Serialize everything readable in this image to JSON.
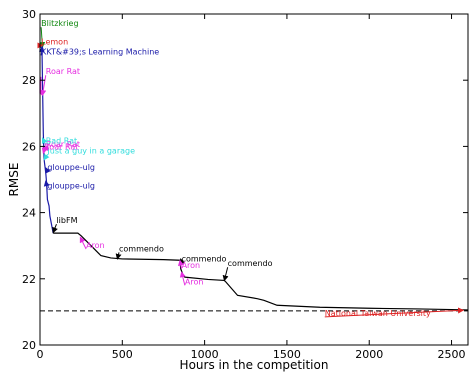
{
  "chart_data": {
    "type": "line",
    "title": "",
    "xlabel": "Hours in the competition",
    "ylabel": "RMSE",
    "xlim": [
      0,
      2600
    ],
    "ylim": [
      20,
      30
    ],
    "grid": false,
    "xticks": [
      0,
      500,
      1000,
      1500,
      2000,
      2500
    ],
    "yticks": [
      20,
      22,
      24,
      26,
      28,
      30
    ],
    "reference_line": {
      "y": 21.03,
      "style": "dashed",
      "color": "#000000"
    },
    "series": [
      {
        "color": "#1a1aa8",
        "points": [
          [
            0,
            29.05
          ],
          [
            12,
            28.95
          ],
          [
            20,
            26.4
          ],
          [
            25,
            25.6
          ],
          [
            35,
            25.2
          ],
          [
            40,
            24.9
          ],
          [
            45,
            24.4
          ],
          [
            55,
            24.2
          ],
          [
            60,
            23.9
          ],
          [
            80,
            23.38
          ]
        ]
      },
      {
        "color": "#000000",
        "points": [
          [
            80,
            23.38
          ],
          [
            230,
            23.38
          ],
          [
            250,
            23.3
          ],
          [
            320,
            22.95
          ],
          [
            370,
            22.7
          ],
          [
            430,
            22.63
          ],
          [
            500,
            22.6
          ],
          [
            750,
            22.58
          ],
          [
            850,
            22.56
          ],
          [
            855,
            22.3
          ],
          [
            870,
            22.1
          ],
          [
            880,
            22.05
          ],
          [
            1020,
            21.98
          ],
          [
            1120,
            21.95
          ],
          [
            1130,
            21.9
          ],
          [
            1200,
            21.5
          ],
          [
            1320,
            21.4
          ],
          [
            1360,
            21.35
          ],
          [
            1440,
            21.2
          ],
          [
            1700,
            21.14
          ],
          [
            2000,
            21.11
          ],
          [
            2300,
            21.09
          ],
          [
            2500,
            21.07
          ],
          [
            2600,
            21.06
          ]
        ]
      },
      {
        "color": "#e52ee0",
        "points": [
          [
            0,
            27.6
          ],
          [
            0,
            28.0
          ],
          [
            5,
            28.1
          ],
          [
            5,
            27.6
          ],
          [
            15,
            27.55
          ]
        ]
      }
    ],
    "annotations": [
      {
        "label": "Blitzkrieg",
        "color": "#118811",
        "text": [
          7,
          29.6
        ],
        "target": [
          15,
          29.0
        ]
      },
      {
        "label": "Lemon",
        "color": "#dd2222",
        "text": [
          7,
          29.05
        ],
        "target": [
          15,
          29.05
        ]
      },
      {
        "label": "KKT&#39;s Learning Machine",
        "color": "#1a1aa8",
        "text": [
          7,
          28.75
        ],
        "target": [
          15,
          29.0
        ]
      },
      {
        "label": "Roar Rat",
        "color": "#e52ee0",
        "text": [
          35,
          28.15
        ],
        "target": [
          15,
          27.55
        ]
      },
      {
        "label": "Roar Rat",
        "color": "#e52ee0",
        "text": [
          35,
          25.95
        ],
        "target": [
          20,
          25.95
        ]
      },
      {
        "label": "Bad Rat",
        "color": "#33dddd",
        "text": [
          35,
          26.05
        ],
        "target": [
          15,
          26.25
        ]
      },
      {
        "label": "Just a guy in a garage",
        "color": "#33dddd",
        "text": [
          45,
          25.75
        ],
        "target": [
          25,
          25.6
        ]
      },
      {
        "label": "Roar Rat",
        "color": "#e52ee0",
        "text": [
          25,
          25.88
        ],
        "target": [
          20,
          25.8
        ]
      },
      {
        "label": "glouppe-ulg",
        "color": "#1a1aa8",
        "text": [
          45,
          25.25
        ],
        "target": [
          35,
          25.35
        ]
      },
      {
        "label": "glouppe-ulg",
        "color": "#1a1aa8",
        "text": [
          45,
          24.7
        ],
        "target": [
          35,
          24.95
        ]
      },
      {
        "label": "libFM",
        "color": "#000000",
        "text": [
          100,
          23.65
        ],
        "target": [
          80,
          23.4
        ]
      },
      {
        "label": "Aron",
        "color": "#e52ee0",
        "text": [
          280,
          22.9
        ],
        "target": [
          245,
          23.25
        ]
      },
      {
        "label": "commendo",
        "color": "#000000",
        "text": [
          480,
          22.8
        ],
        "target": [
          470,
          22.6
        ]
      },
      {
        "label": "commendo",
        "color": "#000000",
        "text": [
          860,
          22.5
        ],
        "target": [
          855,
          22.6
        ]
      },
      {
        "label": "Aron",
        "color": "#e52ee0",
        "text": [
          860,
          22.3
        ],
        "target": [
          850,
          22.55
        ]
      },
      {
        "label": "commendo",
        "color": "#000000",
        "text": [
          1140,
          22.35
        ],
        "target": [
          1120,
          21.95
        ]
      },
      {
        "label": "Aron",
        "color": "#e52ee0",
        "text": [
          880,
          21.8
        ],
        "target": [
          860,
          22.2
        ]
      },
      {
        "label": "National Taiwan University",
        "color": "#dd2222",
        "text": [
          1730,
          20.85
        ],
        "target": [
          2570,
          21.05
        ]
      }
    ]
  }
}
